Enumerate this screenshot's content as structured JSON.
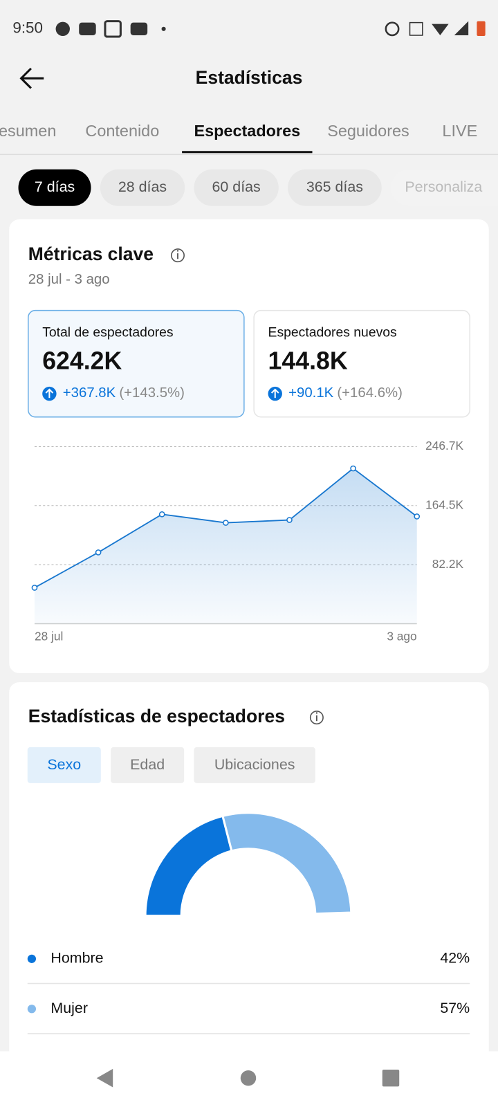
{
  "status_bar": {
    "time": "9:50"
  },
  "header": {
    "title": "Estadísticas"
  },
  "tabs": {
    "items": [
      "esumen",
      "Contenido",
      "Espectadores",
      "Seguidores",
      "LIVE"
    ],
    "active": 2
  },
  "date_ranges": {
    "items": [
      "7 días",
      "28 días",
      "60 días",
      "365 días",
      "Personaliza"
    ],
    "active": 0
  },
  "key_metrics": {
    "title": "Métricas clave",
    "period": "28 jul - 3 ago",
    "cards": [
      {
        "label": "Total de espectadores",
        "value": "624.2K",
        "change": "+367.8K",
        "percent": "(+143.5%)"
      },
      {
        "label": "Espectadores nuevos",
        "value": "144.8K",
        "change": "+90.1K",
        "percent": "(+164.6%)"
      }
    ]
  },
  "viewer_stats": {
    "title": "Estadísticas de espectadores",
    "filters": {
      "items": [
        "Sexo",
        "Edad",
        "Ubicaciones"
      ],
      "active": 0
    }
  },
  "chart_data": [
    {
      "type": "line",
      "categories": [
        "28 jul",
        null,
        null,
        null,
        null,
        null,
        "3 ago"
      ],
      "values": [
        50.1,
        99.3,
        152.4,
        140.6,
        144.5,
        216.3,
        149.4
      ],
      "color": "#1877cf",
      "area": true,
      "ylim": [
        0,
        246.7
      ],
      "yticks": [
        {
          "value": 82.2,
          "label": "82.2K"
        },
        {
          "value": 164.5,
          "label": "164.5K"
        },
        {
          "value": 246.7,
          "label": "246.7K"
        }
      ],
      "grid": true
    },
    {
      "type": "pie",
      "categories": [
        "Hombre",
        "Mujer"
      ],
      "values": [
        42,
        57
      ],
      "value_labels": [
        "42%",
        "57%"
      ],
      "colors": [
        "#0a74da",
        "#84baec"
      ]
    }
  ]
}
